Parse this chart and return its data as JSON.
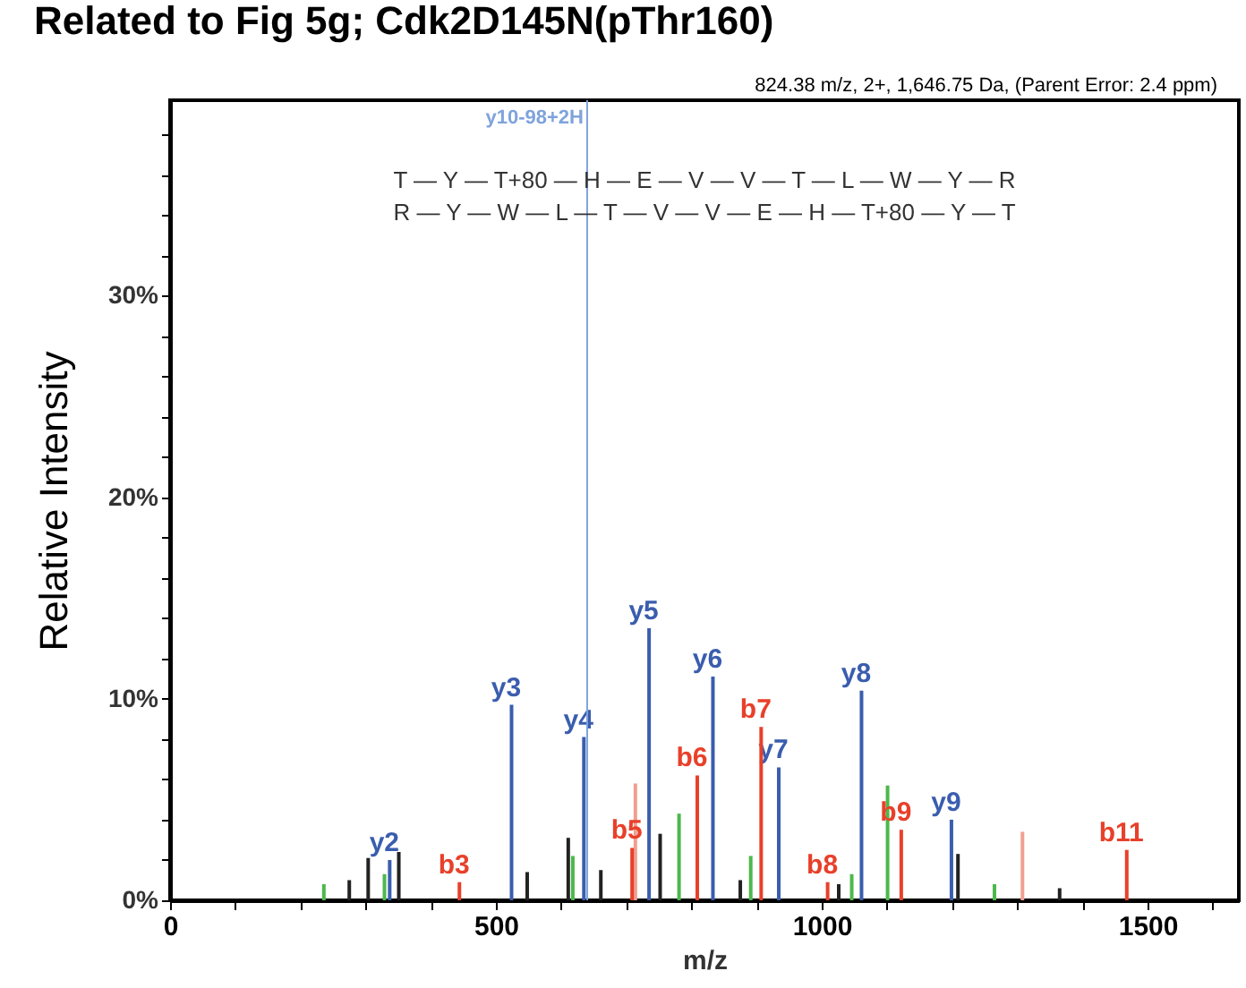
{
  "chart_data": {
    "type": "bar",
    "title": "Related to Fig 5g; Cdk2D145N(pThr160)",
    "subtitle": "824.38 m/z, 2+, 1,646.75 Da,  (Parent Error: 2.4 ppm)",
    "xlabel": "m/z",
    "ylabel": "Relative Intensity",
    "series": [
      {
        "color": "#222222",
        "x": [
          275,
          304,
          351,
          548,
          611,
          661,
          752,
          875,
          1026,
          1209,
          1365
        ],
        "values": [
          1.0,
          2.1,
          2.4,
          1.4,
          3.1,
          1.5,
          3.3,
          1.0,
          0.8,
          2.3,
          0.6
        ]
      },
      {
        "color": "#4cb84c",
        "x": [
          236,
          329,
          618,
          781,
          891,
          1046,
          1101,
          1265
        ],
        "values": [
          0.8,
          1.3,
          2.2,
          4.3,
          2.2,
          1.3,
          5.7,
          0.8
        ]
      },
      {
        "color": "#f0a090",
        "x": [
          714,
          1308
        ],
        "values": [
          5.8,
          3.4
        ]
      },
      {
        "color": "#3a5dae",
        "x": [
          337,
          524,
          635,
          735,
          833,
          934,
          1061,
          1199
        ],
        "values": [
          2.0,
          9.7,
          8.1,
          13.5,
          11.1,
          6.6,
          10.4,
          4.0
        ],
        "value_labels": [
          "y2",
          "y3",
          "y4",
          "y5",
          "y6",
          "y7",
          "y8",
          "y9"
        ]
      },
      {
        "color": "#e8402a",
        "x": [
          444,
          709,
          809,
          907,
          1009,
          1122,
          1468
        ],
        "values": [
          0.9,
          2.6,
          6.2,
          8.6,
          0.9,
          3.5,
          2.5
        ],
        "value_labels": [
          "b3",
          "b5",
          "b6",
          "b7",
          "b8",
          "b9",
          "b11"
        ]
      }
    ],
    "ref_lines": [
      {
        "axis": "x",
        "value": 640,
        "label": "y10-98+2H",
        "color": "#7fa3dc"
      }
    ],
    "annotations": [
      "T — Y — T+80 — H — E — V — V — T — L — W — Y — R",
      "R — Y — W — L — T — V — V — E — H — T+80 — Y — T"
    ],
    "xlim": [
      0,
      1640
    ],
    "ylim": [
      0,
      39.7
    ],
    "xticks": [
      0,
      {
        "value": 100,
        "label": null
      },
      {
        "value": 200,
        "label": null
      },
      {
        "value": 300,
        "label": null
      },
      {
        "value": 400,
        "label": null
      },
      500,
      {
        "value": 600,
        "label": null
      },
      {
        "value": 700,
        "label": null
      },
      {
        "value": 800,
        "label": null
      },
      {
        "value": 900,
        "label": null
      },
      1000,
      {
        "value": 1100,
        "label": null
      },
      {
        "value": 1200,
        "label": null
      },
      {
        "value": 1300,
        "label": null
      },
      {
        "value": 1400,
        "label": null
      },
      1500,
      {
        "value": 1600,
        "label": null
      }
    ],
    "yticks": [
      {
        "value": 0,
        "label": "0%"
      },
      {
        "value": 2,
        "label": null
      },
      {
        "value": 4,
        "label": null
      },
      {
        "value": 6,
        "label": null
      },
      {
        "value": 8,
        "label": null
      },
      {
        "value": 10,
        "label": "10%"
      },
      {
        "value": 12,
        "label": null
      },
      {
        "value": 14,
        "label": null
      },
      {
        "value": 16,
        "label": null
      },
      {
        "value": 18,
        "label": null
      },
      {
        "value": 20,
        "label": "20%"
      },
      {
        "value": 22,
        "label": null
      },
      {
        "value": 24,
        "label": null
      },
      {
        "value": 26,
        "label": null
      },
      {
        "value": 28,
        "label": null
      },
      {
        "value": 30,
        "label": "30%"
      },
      {
        "value": 32,
        "label": null
      },
      {
        "value": 34,
        "label": null
      },
      {
        "value": 36,
        "label": null
      },
      {
        "value": 38,
        "label": null
      }
    ],
    "grid": false
  }
}
